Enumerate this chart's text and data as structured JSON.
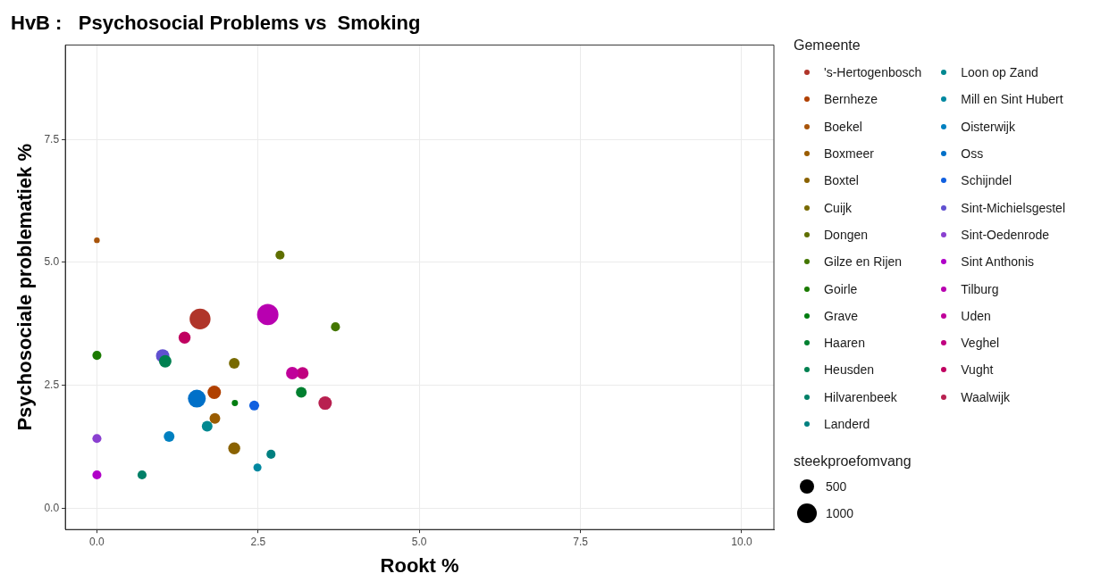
{
  "chart_data": {
    "type": "bubble",
    "title": "HvB :   Psychosocial Problems vs  Smoking",
    "xlabel": "Rookt %",
    "ylabel": "Psychosociale problematiek %",
    "legend_title": "Gemeente",
    "legend": "right",
    "grid": true,
    "marker": "circle",
    "xlim": [
      -0.49,
      10.5
    ],
    "ylim": [
      -0.43,
      9.42
    ],
    "xticks": [
      {
        "value": 0,
        "label": "0.0"
      },
      {
        "value": 2.5,
        "label": "2.5"
      },
      {
        "value": 5,
        "label": "5.0"
      },
      {
        "value": 7.5,
        "label": "7.5"
      },
      {
        "value": 10,
        "label": "10.0"
      }
    ],
    "yticks": [
      {
        "value": 0,
        "label": "0.0"
      },
      {
        "value": 2.5,
        "label": "2.5"
      },
      {
        "value": 5,
        "label": "5.0"
      },
      {
        "value": 7.5,
        "label": "7.5"
      }
    ],
    "size_legend": [
      500,
      1000
    ],
    "annotations": [
      "steekproefomvang"
    ],
    "series": [
      {
        "name": "'s-Hertogenbosch",
        "color": "#b0352a",
        "x": [
          1.6
        ],
        "values": [
          3.85
        ],
        "sizes": [
          1070
        ]
      },
      {
        "name": "Bernheze",
        "color": "#b04000",
        "x": [
          1.82
        ],
        "values": [
          2.36
        ],
        "sizes": [
          440
        ]
      },
      {
        "name": "Boekel",
        "color": "#a8540a",
        "x": [
          0
        ],
        "values": [
          5.45
        ],
        "sizes": [
          80
        ]
      },
      {
        "name": "Boxmeer",
        "color": "#9a5c00",
        "x": [
          1.83
        ],
        "values": [
          1.83
        ],
        "sizes": [
          280
        ]
      },
      {
        "name": "Boxtel",
        "color": "#8a6200",
        "x": [
          2.13
        ],
        "values": [
          1.22
        ],
        "sizes": [
          350
        ]
      },
      {
        "name": "Cuijk",
        "color": "#786a00",
        "x": [
          2.13
        ],
        "values": [
          2.95
        ],
        "sizes": [
          280
        ]
      },
      {
        "name": "Dongen",
        "color": "#5f6f00",
        "x": [
          2.84
        ],
        "values": [
          5.15
        ],
        "sizes": [
          200
        ]
      },
      {
        "name": "Gilze en Rijen",
        "color": "#437600",
        "x": [
          3.7
        ],
        "values": [
          3.69
        ],
        "sizes": [
          200
        ]
      },
      {
        "name": "Goirle",
        "color": "#1a7a00",
        "x": [
          0
        ],
        "values": [
          3.11
        ],
        "sizes": [
          200
        ]
      },
      {
        "name": "Grave",
        "color": "#007d10",
        "x": [
          2.14
        ],
        "values": [
          2.14
        ],
        "sizes": [
          95
        ]
      },
      {
        "name": "Haaren",
        "color": "#008030",
        "x": [
          3.17
        ],
        "values": [
          2.36
        ],
        "sizes": [
          280
        ]
      },
      {
        "name": "Heusden",
        "color": "#008050",
        "x": [
          1.06
        ],
        "values": [
          2.99
        ],
        "sizes": [
          380
        ]
      },
      {
        "name": "Hilvarenbeek",
        "color": "#008068",
        "x": [
          0.7
        ],
        "values": [
          0.68
        ],
        "sizes": [
          200
        ]
      },
      {
        "name": "Landerd",
        "color": "#008080",
        "x": [
          2.7
        ],
        "values": [
          1.1
        ],
        "sizes": [
          200
        ]
      },
      {
        "name": "Loon op Zand",
        "color": "#008890",
        "x": [
          1.71
        ],
        "values": [
          1.67
        ],
        "sizes": [
          280
        ]
      },
      {
        "name": "Mill en Sint Hubert",
        "color": "#0088a0",
        "x": [
          2.49
        ],
        "values": [
          0.83
        ],
        "sizes": [
          160
        ]
      },
      {
        "name": "Oisterwijk",
        "color": "#0080c0",
        "x": [
          1.12
        ],
        "values": [
          1.46
        ],
        "sizes": [
          280
        ]
      },
      {
        "name": "Oss",
        "color": "#0070c8",
        "x": [
          1.55
        ],
        "values": [
          2.23
        ],
        "sizes": [
          780
        ]
      },
      {
        "name": "Schijndel",
        "color": "#1060e0",
        "x": [
          2.44
        ],
        "values": [
          2.09
        ],
        "sizes": [
          240
        ]
      },
      {
        "name": "Sint-Michielsgestel",
        "color": "#6050d0",
        "x": [
          1.02
        ],
        "values": [
          3.1
        ],
        "sizes": [
          440
        ]
      },
      {
        "name": "Sint-Oedenrode",
        "color": "#8a40d0",
        "x": [
          0
        ],
        "values": [
          1.42
        ],
        "sizes": [
          200
        ]
      },
      {
        "name": "Sint Anthonis",
        "color": "#b000c8",
        "x": [
          0
        ],
        "values": [
          0.68
        ],
        "sizes": [
          200
        ]
      },
      {
        "name": "Tilburg",
        "color": "#b800b0",
        "x": [
          2.65
        ],
        "values": [
          3.94
        ],
        "sizes": [
          1120
        ]
      },
      {
        "name": "Uden",
        "color": "#c0009a",
        "x": [
          3.03
        ],
        "values": [
          2.75
        ],
        "sizes": [
          380
        ]
      },
      {
        "name": "Veghel",
        "color": "#c00080",
        "x": [
          3.19
        ],
        "values": [
          2.75
        ],
        "sizes": [
          350
        ]
      },
      {
        "name": "Vught",
        "color": "#c00060",
        "x": [
          1.36
        ],
        "values": [
          3.47
        ],
        "sizes": [
          350
        ]
      },
      {
        "name": "Waalwijk",
        "color": "#b82050",
        "x": [
          3.54
        ],
        "values": [
          2.14
        ],
        "sizes": [
          440
        ]
      }
    ]
  }
}
